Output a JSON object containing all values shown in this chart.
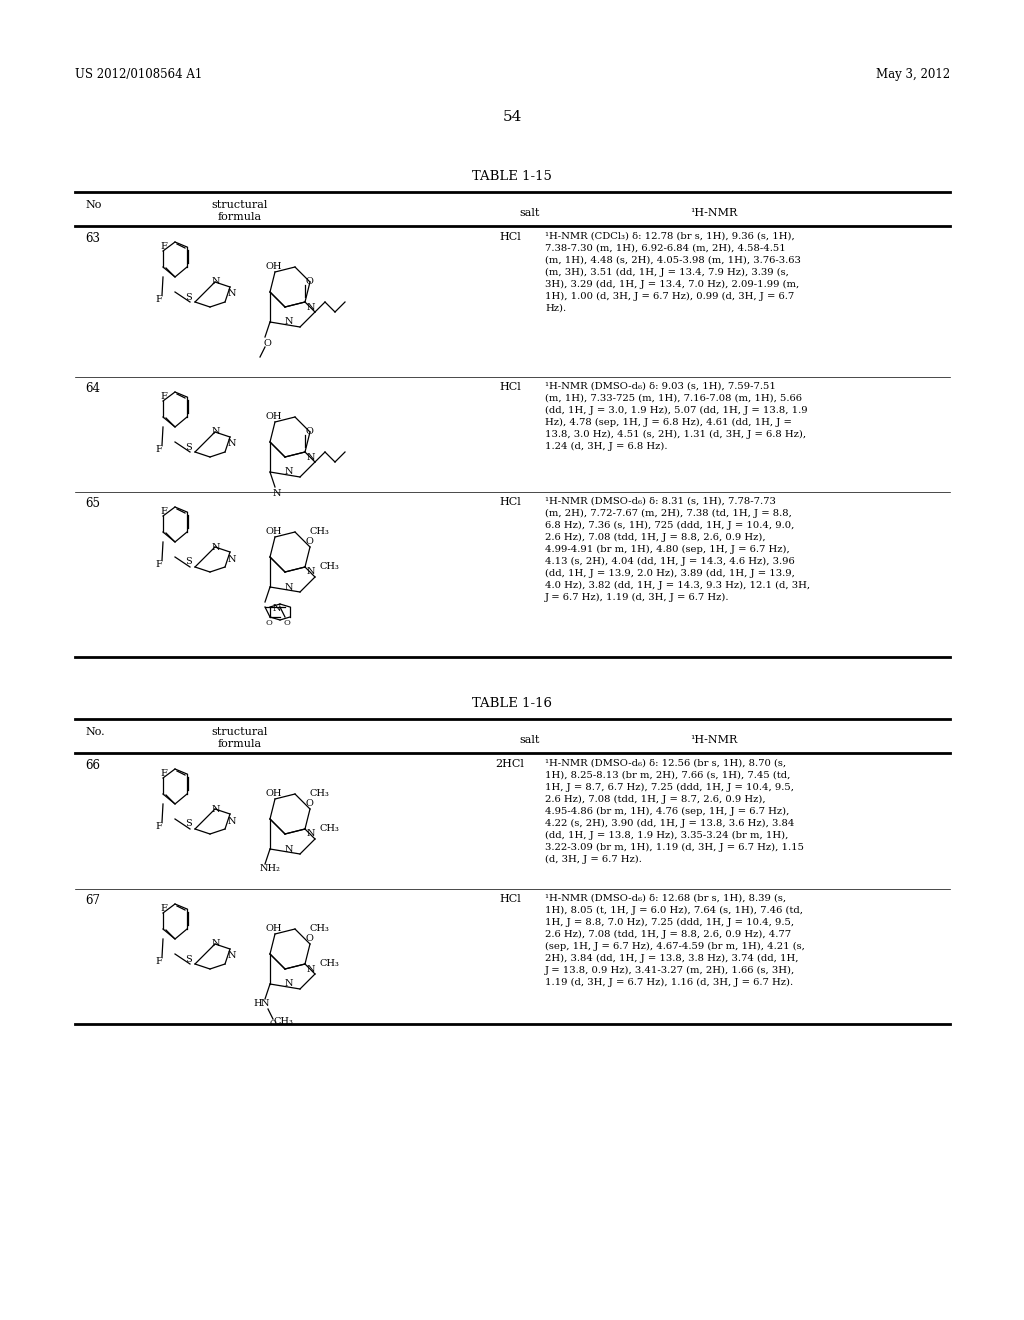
{
  "page_header_left": "US 2012/0108564 A1",
  "page_header_right": "May 3, 2012",
  "page_number": "54",
  "background_color": "#ffffff",
  "text_color": "#000000",
  "table1_title": "TABLE 1-15",
  "table1_headers": [
    "No",
    "structural\nformula",
    "salt",
    "¹H-NMR"
  ],
  "table1_rows": [
    {
      "no": "63",
      "salt": "HCl",
      "nmr": "¹H-NMR (CDCl₃) δ: 12.78 (br s, 1H), 9.36 (s, 1H),\n7.38-7.30 (m, 1H), 6.92-6.84 (m, 2H), 4.58-4.51\n(m, 1H), 4.48 (s, 2H), 4.05-3.98 (m, 1H), 3.76-3.63\n(m, 3H), 3.51 (dd, 1H, J = 13.4, 7.9 Hz), 3.39 (s,\n3H), 3.29 (dd, 1H, J = 13.4, 7.0 Hz), 2.09-1.99 (m,\n1H), 1.00 (d, 3H, J = 6.7 Hz), 0.99 (d, 3H, J = 6.7\nHz)."
    },
    {
      "no": "64",
      "salt": "HCl",
      "nmr": "¹H-NMR (DMSO-d₆) δ: 9.03 (s, 1H), 7.59-7.51\n(m, 1H), 7.33-725 (m, 1H), 7.16-7.08 (m, 1H), 5.66\n(dd, 1H, J = 3.0, 1.9 Hz), 5.07 (dd, 1H, J = 13.8, 1.9\nHz), 4.78 (sep, 1H, J = 6.8 Hz), 4.61 (dd, 1H, J =\n13.8, 3.0 Hz), 4.51 (s, 2H), 1.31 (d, 3H, J = 6.8 Hz),\n1.24 (d, 3H, J = 6.8 Hz)."
    },
    {
      "no": "65",
      "salt": "HCl",
      "nmr": "¹H-NMR (DMSO-d₆) δ: 8.31 (s, 1H), 7.78-7.73\n(m, 2H), 7.72-7.67 (m, 2H), 7.38 (td, 1H, J = 8.8,\n6.8 Hz), 7.36 (s, 1H), 725 (ddd, 1H, J = 10.4, 9.0,\n2.6 Hz), 7.08 (tdd, 1H, J = 8.8, 2.6, 0.9 Hz),\n4.99-4.91 (br m, 1H), 4.80 (sep, 1H, J = 6.7 Hz),\n4.13 (s, 2H), 4.04 (dd, 1H, J = 14.3, 4.6 Hz), 3.96\n(dd, 1H, J = 13.9, 2.0 Hz), 3.89 (dd, 1H, J = 13.9,\n4.0 Hz), 3.82 (dd, 1H, J = 14.3, 9.3 Hz), 12.1 (d, 3H,\nJ = 6.7 Hz), 1.19 (d, 3H, J = 6.7 Hz)."
    }
  ],
  "table2_title": "TABLE 1-16",
  "table2_headers": [
    "No.",
    "structural\nformula",
    "salt",
    "¹H-NMR"
  ],
  "table2_rows": [
    {
      "no": "66",
      "salt": "2HCl",
      "nmr": "¹H-NMR (DMSO-d₆) δ: 12.56 (br s, 1H), 8.70 (s,\n1H), 8.25-8.13 (br m, 2H), 7.66 (s, 1H), 7.45 (td,\n1H, J = 8.7, 6.7 Hz), 7.25 (ddd, 1H, J = 10.4, 9.5,\n2.6 Hz), 7.08 (tdd, 1H, J = 8.7, 2.6, 0.9 Hz),\n4.95-4.86 (br m, 1H), 4.76 (sep, 1H, J = 6.7 Hz),\n4.22 (s, 2H), 3.90 (dd, 1H, J = 13.8, 3.6 Hz), 3.84\n(dd, 1H, J = 13.8, 1.9 Hz), 3.35-3.24 (br m, 1H),\n3.22-3.09 (br m, 1H), 1.19 (d, 3H, J = 6.7 Hz), 1.15\n(d, 3H, J = 6.7 Hz)."
    },
    {
      "no": "67",
      "salt": "HCl",
      "nmr": "¹H-NMR (DMSO-d₆) δ: 12.68 (br s, 1H), 8.39 (s,\n1H), 8.05 (t, 1H, J = 6.0 Hz), 7.64 (s, 1H), 7.46 (td,\n1H, J = 8.8, 7.0 Hz), 7.25 (ddd, 1H, J = 10.4, 9.5,\n2.6 Hz), 7.08 (tdd, 1H, J = 8.8, 2.6, 0.9 Hz), 4.77\n(sep, 1H, J = 6.7 Hz), 4.67-4.59 (br m, 1H), 4.21 (s,\n2H), 3.84 (dd, 1H, J = 13.8, 3.8 Hz), 3.74 (dd, 1H,\nJ = 13.8, 0.9 Hz), 3.41-3.27 (m, 2H), 1.66 (s, 3H),\n1.19 (d, 3H, J = 6.7 Hz), 1.16 (d, 3H, J = 6.7 Hz)."
    }
  ]
}
